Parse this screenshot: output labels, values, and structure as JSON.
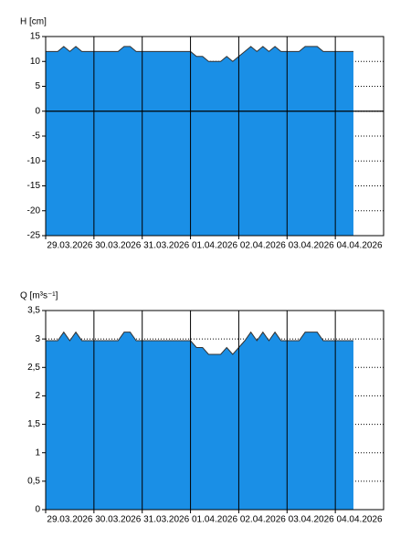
{
  "chart_data": [
    {
      "type": "area",
      "ylabel": "H [cm]",
      "color": "#1a8fe6",
      "grid": true,
      "zero_line": true,
      "categories": [
        null,
        null,
        null,
        null,
        "29.03.2026",
        null,
        null,
        null,
        null,
        null,
        null,
        null,
        "30.03.2026",
        null,
        null,
        null,
        null,
        null,
        null,
        null,
        "31.03.2026",
        null,
        null,
        null,
        null,
        null,
        null,
        null,
        "01.04.2026",
        null,
        null,
        null,
        null,
        null,
        null,
        null,
        "02.04.2026",
        null,
        null,
        null,
        null,
        null,
        null,
        null,
        "03.04.2026",
        null,
        null,
        null,
        null,
        null,
        null,
        null,
        "04.04.2026",
        null,
        null,
        null
      ],
      "values": [
        12,
        12,
        12,
        13,
        12,
        13,
        12,
        12,
        12,
        12,
        12,
        12,
        12,
        13,
        13,
        12,
        12,
        12,
        12,
        12,
        12,
        12,
        12,
        12,
        12,
        11,
        11,
        10,
        10,
        10,
        11,
        10,
        11,
        12,
        13,
        12,
        13,
        12,
        13,
        12,
        12,
        12,
        12,
        13,
        13,
        13,
        12,
        12,
        12,
        12,
        12,
        12,
        null,
        null,
        null,
        null
      ],
      "ylim": [
        -25,
        15
      ],
      "yticks": [
        -25,
        -20,
        -15,
        -10,
        -5,
        0,
        5,
        10,
        15
      ]
    },
    {
      "type": "area",
      "ylabel": "Q [m³s⁻¹]",
      "color": "#1a8fe6",
      "grid": true,
      "zero_line": false,
      "categories": [
        null,
        null,
        null,
        null,
        "29.03.2026",
        null,
        null,
        null,
        null,
        null,
        null,
        null,
        "30.03.2026",
        null,
        null,
        null,
        null,
        null,
        null,
        null,
        "31.03.2026",
        null,
        null,
        null,
        null,
        null,
        null,
        null,
        "01.04.2026",
        null,
        null,
        null,
        null,
        null,
        null,
        null,
        "02.04.2026",
        null,
        null,
        null,
        null,
        null,
        null,
        null,
        "03.04.2026",
        null,
        null,
        null,
        null,
        null,
        null,
        null,
        "04.04.2026",
        null,
        null,
        null
      ],
      "values": [
        2.97,
        2.97,
        2.97,
        3.12,
        2.97,
        3.12,
        2.97,
        2.97,
        2.97,
        2.97,
        2.97,
        2.97,
        2.97,
        3.12,
        3.12,
        2.97,
        2.97,
        2.97,
        2.97,
        2.97,
        2.97,
        2.97,
        2.97,
        2.97,
        2.97,
        2.85,
        2.85,
        2.73,
        2.73,
        2.73,
        2.85,
        2.73,
        2.85,
        2.97,
        3.12,
        2.97,
        3.12,
        2.97,
        3.12,
        2.97,
        2.97,
        2.97,
        2.97,
        3.12,
        3.12,
        3.12,
        2.97,
        2.97,
        2.97,
        2.97,
        2.97,
        2.97,
        null,
        null,
        null,
        null
      ],
      "ylim": [
        0,
        3.5
      ],
      "yticks": [
        0,
        {
          "value": 0.5,
          "label": "0,5"
        },
        1,
        {
          "value": 1.5,
          "label": "1,5"
        },
        2,
        {
          "value": 2.5,
          "label": "2,5"
        },
        3,
        {
          "value": 3.5,
          "label": "3,5"
        }
      ]
    }
  ]
}
